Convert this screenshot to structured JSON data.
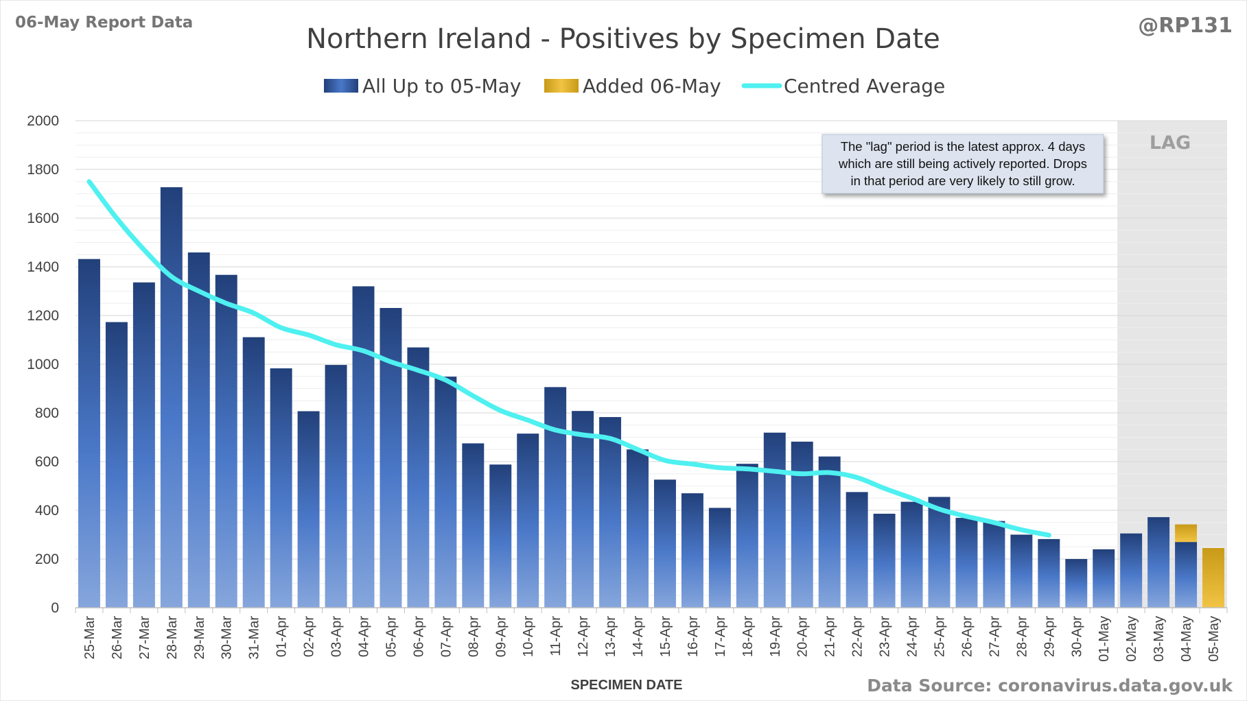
{
  "report_label": "06-May Report Data",
  "author": "@RP131",
  "source": "Data Source: coronavirus.data.gov.uk",
  "lag_label": "LAG",
  "note_lines": [
    "The \"lag\" period is the latest approx. 4 days",
    "which are still being actively reported.  Drops",
    "in that period are very likely to still grow."
  ],
  "colors": {
    "bar_dark": "#22407a",
    "bar_mid": "#4a78c8",
    "bar_light": "#86a6dc",
    "added_dark": "#c89a18",
    "added_light": "#f2c445",
    "average": "#4ff0f0",
    "lag_shade": "#e6e6e6",
    "note_bg": "#dde4ef"
  },
  "chart_data": {
    "type": "bar",
    "title": "Northern Ireland - Positives by Specimen Date",
    "xlabel": "SPECIMEN DATE",
    "ylabel": "",
    "ylim": [
      0,
      2000
    ],
    "yticks": [
      0,
      200,
      400,
      600,
      800,
      1000,
      1200,
      1400,
      1600,
      1800,
      2000
    ],
    "grid": true,
    "legend_position": "top",
    "lag_start_category": "02-May",
    "categories": [
      "25-Mar",
      "26-Mar",
      "27-Mar",
      "28-Mar",
      "29-Mar",
      "30-Mar",
      "31-Mar",
      "01-Apr",
      "02-Apr",
      "03-Apr",
      "04-Apr",
      "05-Apr",
      "06-Apr",
      "07-Apr",
      "08-Apr",
      "09-Apr",
      "10-Apr",
      "11-Apr",
      "12-Apr",
      "13-Apr",
      "14-Apr",
      "15-Apr",
      "16-Apr",
      "17-Apr",
      "18-Apr",
      "19-Apr",
      "20-Apr",
      "21-Apr",
      "22-Apr",
      "23-Apr",
      "24-Apr",
      "25-Apr",
      "26-Apr",
      "27-Apr",
      "28-Apr",
      "29-Apr",
      "30-Apr",
      "01-May",
      "02-May",
      "03-May",
      "04-May",
      "05-May"
    ],
    "series": [
      {
        "name": "All Up to 05-May",
        "kind": "bar",
        "values": [
          1432,
          1173,
          1336,
          1727,
          1459,
          1367,
          1111,
          983,
          807,
          997,
          1320,
          1231,
          1069,
          949,
          675,
          588,
          715,
          906,
          808,
          783,
          650,
          526,
          470,
          410,
          591,
          719,
          682,
          621,
          475,
          386,
          435,
          455,
          369,
          356,
          300,
          282,
          200,
          240,
          305,
          372,
          270,
          0
        ]
      },
      {
        "name": "Added 06-May",
        "kind": "bar",
        "values": [
          0,
          0,
          0,
          0,
          0,
          0,
          0,
          0,
          0,
          0,
          0,
          0,
          0,
          0,
          0,
          0,
          0,
          0,
          0,
          0,
          0,
          0,
          0,
          0,
          0,
          0,
          0,
          0,
          0,
          0,
          0,
          0,
          0,
          0,
          0,
          0,
          0,
          0,
          0,
          0,
          72,
          245
        ]
      },
      {
        "name": "Centred Average",
        "kind": "line",
        "values": [
          1750,
          1600,
          1470,
          1360,
          1300,
          1250,
          1210,
          1150,
          1120,
          1080,
          1055,
          1010,
          975,
          935,
          870,
          810,
          770,
          730,
          710,
          695,
          650,
          605,
          590,
          575,
          570,
          560,
          550,
          555,
          535,
          490,
          450,
          405,
          375,
          350,
          320,
          298,
          null,
          null,
          null,
          null,
          null,
          null
        ]
      }
    ]
  }
}
